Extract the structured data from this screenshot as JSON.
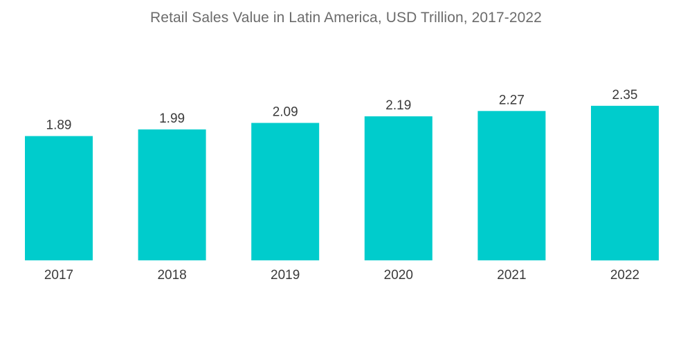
{
  "chart_data": {
    "type": "bar",
    "title": "Retail Sales Value in Latin America, USD Trillion, 2017-2022",
    "categories": [
      "2017",
      "2018",
      "2019",
      "2020",
      "2021",
      "2022"
    ],
    "values": [
      1.89,
      1.99,
      2.09,
      2.19,
      2.27,
      2.35
    ],
    "data_labels": [
      "1.89",
      "1.99",
      "2.09",
      "2.19",
      "2.27",
      "2.35"
    ],
    "xlabel": "",
    "ylabel": "",
    "ylim": [
      0,
      2.6
    ],
    "grid": false,
    "legend": "none",
    "bar_color": "#00cccc"
  }
}
